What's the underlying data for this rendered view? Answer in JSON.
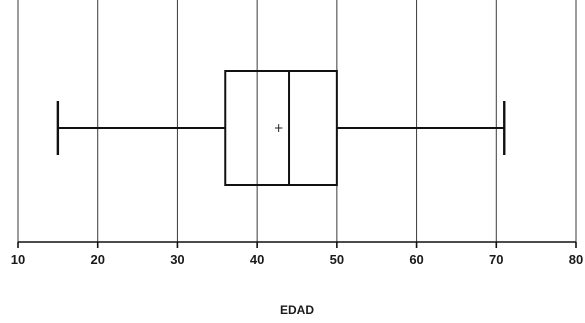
{
  "chart_data": {
    "type": "boxplot",
    "orientation": "horizontal",
    "title": "",
    "xlabel": "EDAD",
    "ylabel": "",
    "xlim": [
      10,
      80
    ],
    "xticks": [
      10,
      20,
      30,
      40,
      50,
      60,
      70,
      80
    ],
    "xtick_labels": [
      "10",
      "20",
      "30",
      "40",
      "50",
      "60",
      "70",
      "80"
    ],
    "grid": "vertical",
    "box": {
      "min": 15,
      "q1": 36,
      "median": 44,
      "q3": 50,
      "max": 71,
      "mean": 42.7,
      "mean_marker": "+"
    },
    "colors": {
      "stroke": "#111111",
      "grid": "#3a3a3a",
      "background": "#ffffff"
    }
  }
}
